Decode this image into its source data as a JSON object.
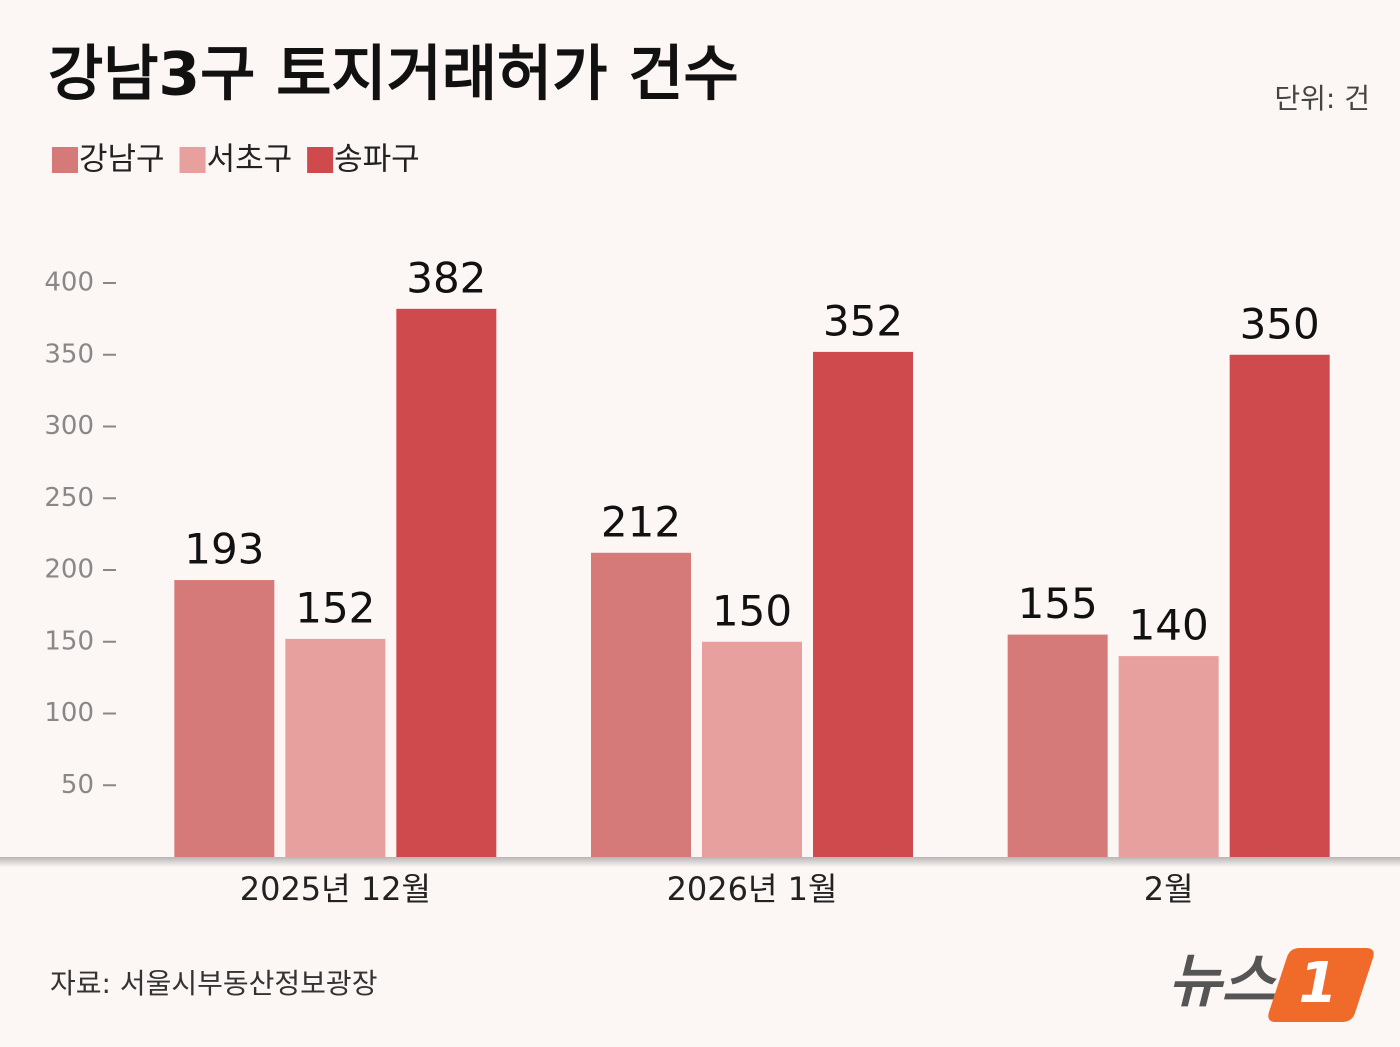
{
  "chart_data": {
    "type": "bar",
    "title": "강남3구 토지거래허가 건수",
    "unit_note": "단위: 건",
    "categories": [
      "2025년 12월",
      "2026년 1월",
      "2월"
    ],
    "series": [
      {
        "name": "강남구",
        "color": "#d67a79",
        "values": [
          193,
          212,
          155
        ]
      },
      {
        "name": "서초구",
        "color": "#e8a09f",
        "values": [
          152,
          150,
          140
        ]
      },
      {
        "name": "송파구",
        "color": "#cf4a4c",
        "values": [
          382,
          352,
          350
        ]
      }
    ],
    "ylim": [
      0,
      400
    ],
    "yticks": [
      50,
      100,
      150,
      200,
      250,
      300,
      350,
      400
    ],
    "grid": false,
    "source": "자료: 서울시부동산정보광장"
  },
  "logo": {
    "text": "뉴스",
    "mark": "1"
  }
}
